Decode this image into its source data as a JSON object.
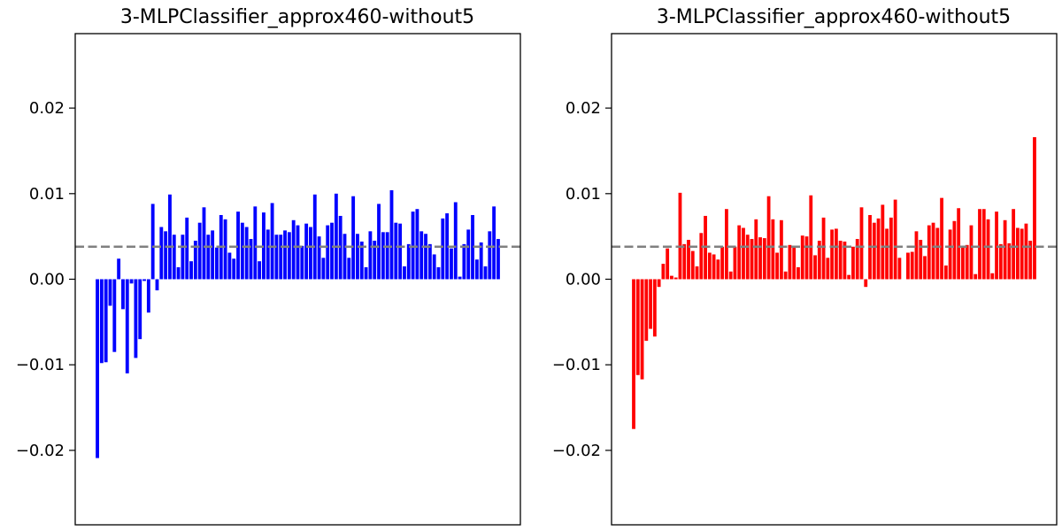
{
  "chart_data": [
    {
      "type": "bar",
      "title": "3-MLPClassifier_approx460-without5",
      "xlabel": "",
      "ylabel": "",
      "ylim": [
        -0.0287,
        0.0287
      ],
      "yticks": [
        -0.02,
        -0.01,
        0.0,
        0.01,
        0.02
      ],
      "ytick_labels": [
        "−0.02",
        "−0.01",
        "0.00",
        "0.01",
        "0.02"
      ],
      "xticks_visible": false,
      "grid": false,
      "color": "#0000ff",
      "reference_line": {
        "y": 0.0038,
        "style": "dashed",
        "color": "#808080"
      },
      "values": [
        -0.0209,
        -0.0098,
        -0.0097,
        -0.0031,
        -0.0085,
        0.0024,
        -0.0035,
        -0.011,
        -0.0005,
        -0.0092,
        -0.007,
        -0.0002,
        -0.0039,
        0.0088,
        -0.0013,
        0.0061,
        0.0056,
        0.0099,
        0.0052,
        0.0014,
        0.0052,
        0.0072,
        0.0021,
        0.0045,
        0.0066,
        0.0084,
        0.0052,
        0.0057,
        0.0037,
        0.0075,
        0.007,
        0.0031,
        0.0024,
        0.0079,
        0.0066,
        0.0061,
        0.0047,
        0.0085,
        0.0021,
        0.0078,
        0.0058,
        0.0089,
        0.0052,
        0.0052,
        0.0057,
        0.0055,
        0.0069,
        0.0063,
        0.0039,
        0.0065,
        0.0061,
        0.0099,
        0.005,
        0.0025,
        0.0063,
        0.0066,
        0.01,
        0.0074,
        0.0053,
        0.0025,
        0.0097,
        0.0053,
        0.0044,
        0.0014,
        0.0056,
        0.0045,
        0.0088,
        0.0055,
        0.0055,
        0.0104,
        0.0066,
        0.0065,
        0.0015,
        0.0041,
        0.0079,
        0.0082,
        0.0056,
        0.0053,
        0.0041,
        0.0029,
        0.0014,
        0.0071,
        0.0077,
        0.0036,
        0.009,
        0.0003,
        0.0041,
        0.0058,
        0.0075,
        0.0023,
        0.0043,
        0.0015,
        0.0056,
        0.0085,
        0.0047
      ]
    },
    {
      "type": "bar",
      "title": "3-MLPClassifier_approx460-without5",
      "xlabel": "",
      "ylabel": "",
      "ylim": [
        -0.0287,
        0.0287
      ],
      "yticks": [
        -0.02,
        -0.01,
        0.0,
        0.01,
        0.02
      ],
      "ytick_labels": [
        "−0.02",
        "−0.01",
        "0.00",
        "0.01",
        "0.02"
      ],
      "xticks_visible": false,
      "grid": false,
      "color": "#ff0000",
      "reference_line": {
        "y": 0.0038,
        "style": "dashed",
        "color": "#808080"
      },
      "values": [
        -0.0175,
        -0.0112,
        -0.0117,
        -0.0072,
        -0.0058,
        -0.0067,
        -0.0009,
        0.0018,
        0.0036,
        0.0004,
        0.0002,
        0.0101,
        0.0041,
        0.0046,
        0.0033,
        0.0015,
        0.0054,
        0.0074,
        0.0031,
        0.0029,
        0.0023,
        0.0038,
        0.0082,
        0.0009,
        0.0038,
        0.0063,
        0.006,
        0.0052,
        0.0047,
        0.007,
        0.0049,
        0.0048,
        0.0097,
        0.007,
        0.0031,
        0.0069,
        0.0009,
        0.004,
        0.0038,
        0.0014,
        0.0051,
        0.005,
        0.0098,
        0.0028,
        0.0045,
        0.0072,
        0.0025,
        0.0058,
        0.0059,
        0.0045,
        0.0044,
        0.0005,
        0.0038,
        0.0047,
        0.0084,
        -0.0009,
        0.0075,
        0.0066,
        0.0071,
        0.0087,
        0.0059,
        0.0072,
        0.0093,
        0.0025,
        0.0,
        0.0031,
        0.0032,
        0.0056,
        0.0046,
        0.0027,
        0.0063,
        0.0066,
        0.006,
        0.0095,
        0.0016,
        0.0058,
        0.0068,
        0.0083,
        0.0038,
        0.004,
        0.0063,
        0.0006,
        0.0082,
        0.0082,
        0.007,
        0.0007,
        0.0079,
        0.0041,
        0.0069,
        0.0042,
        0.0082,
        0.006,
        0.0059,
        0.0065,
        0.0045,
        0.0166
      ]
    }
  ]
}
